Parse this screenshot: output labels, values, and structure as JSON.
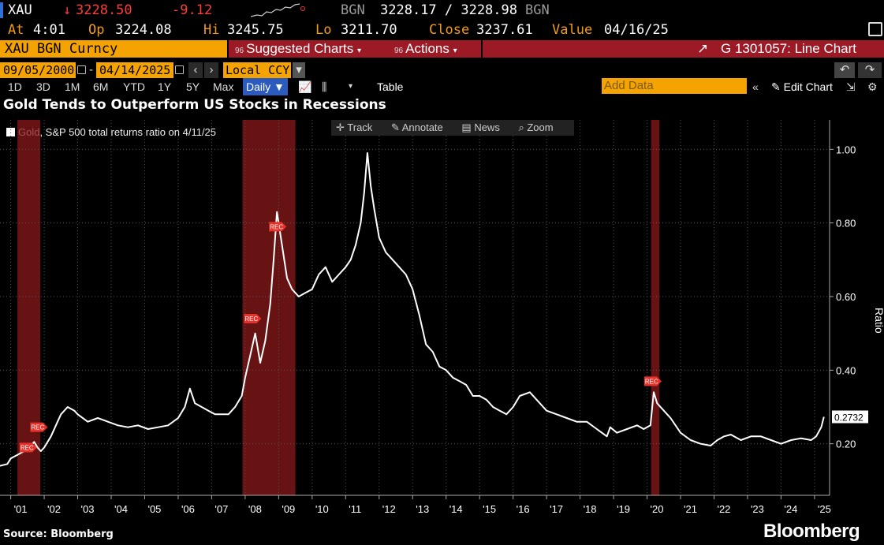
{
  "header": {
    "ticker": "XAU",
    "price_arrow": "↓",
    "price": "3228.50",
    "change": "-9.12",
    "source_label": "BGN",
    "bid_ask": "3228.17 / 3228.98",
    "source_label2": "BGN",
    "at_label": "At",
    "at_value": "4:01",
    "open_label": "Op",
    "open_value": "3224.08",
    "hi_label": "Hi",
    "hi_value": "3245.75",
    "lo_label": "Lo",
    "lo_value": "3211.70",
    "close_label": "Close",
    "close_value": "3237.61",
    "value_label": "Value",
    "value_date": "04/16/25"
  },
  "menu": {
    "security": "XAU BGN Curncy",
    "suggested_num": "96",
    "suggested": "Suggested Charts",
    "actions_num": "96",
    "actions": "Actions",
    "chart_id": "G 1301057: Line Chart"
  },
  "range": {
    "start_date": "09/05/2000",
    "end_date": "04/14/2025",
    "dash": "-",
    "currency": "Local CCY"
  },
  "periods": [
    "1D",
    "3D",
    "1M",
    "6M",
    "YTD",
    "1Y",
    "5Y",
    "Max"
  ],
  "frequency": "Daily",
  "table_label": "Table",
  "add_data_placeholder": "Add Data",
  "edit_chart": "Edit Chart",
  "toolbar": {
    "track": "Track",
    "annotate": "Annotate",
    "news": "News",
    "zoom": "Zoom"
  },
  "colors": {
    "line": "#ffffff",
    "recession": "#8b1a1a",
    "accent": "#f5a300",
    "menu": "#9b1a26"
  },
  "chart_data": {
    "type": "line",
    "title": "Gold Tends to Outperform US Stocks in Recessions",
    "series": [
      {
        "name": "Gold, S&P 500 total returns ratio on 4/11/25",
        "points": [
          [
            2000.68,
            0.14
          ],
          [
            2000.9,
            0.145
          ],
          [
            2001.0,
            0.16
          ],
          [
            2001.2,
            0.17
          ],
          [
            2001.4,
            0.18
          ],
          [
            2001.55,
            0.19
          ],
          [
            2001.7,
            0.205
          ],
          [
            2001.8,
            0.19
          ],
          [
            2001.9,
            0.18
          ],
          [
            2002.0,
            0.19
          ],
          [
            2002.2,
            0.22
          ],
          [
            2002.4,
            0.26
          ],
          [
            2002.5,
            0.28
          ],
          [
            2002.7,
            0.3
          ],
          [
            2002.9,
            0.29
          ],
          [
            2003.0,
            0.28
          ],
          [
            2003.3,
            0.26
          ],
          [
            2003.6,
            0.27
          ],
          [
            2003.9,
            0.26
          ],
          [
            2004.2,
            0.25
          ],
          [
            2004.5,
            0.245
          ],
          [
            2004.8,
            0.25
          ],
          [
            2005.1,
            0.24
          ],
          [
            2005.4,
            0.245
          ],
          [
            2005.7,
            0.25
          ],
          [
            2006.0,
            0.27
          ],
          [
            2006.2,
            0.3
          ],
          [
            2006.35,
            0.35
          ],
          [
            2006.5,
            0.31
          ],
          [
            2006.7,
            0.3
          ],
          [
            2006.9,
            0.29
          ],
          [
            2007.1,
            0.28
          ],
          [
            2007.3,
            0.28
          ],
          [
            2007.5,
            0.28
          ],
          [
            2007.7,
            0.3
          ],
          [
            2007.9,
            0.33
          ],
          [
            2008.0,
            0.38
          ],
          [
            2008.15,
            0.44
          ],
          [
            2008.3,
            0.5
          ],
          [
            2008.45,
            0.42
          ],
          [
            2008.6,
            0.48
          ],
          [
            2008.75,
            0.58
          ],
          [
            2008.85,
            0.7
          ],
          [
            2008.95,
            0.83
          ],
          [
            2009.1,
            0.74
          ],
          [
            2009.25,
            0.65
          ],
          [
            2009.4,
            0.62
          ],
          [
            2009.6,
            0.6
          ],
          [
            2009.8,
            0.61
          ],
          [
            2010.0,
            0.62
          ],
          [
            2010.2,
            0.66
          ],
          [
            2010.4,
            0.68
          ],
          [
            2010.6,
            0.64
          ],
          [
            2010.8,
            0.66
          ],
          [
            2011.0,
            0.68
          ],
          [
            2011.15,
            0.7
          ],
          [
            2011.3,
            0.74
          ],
          [
            2011.45,
            0.8
          ],
          [
            2011.55,
            0.88
          ],
          [
            2011.65,
            0.99
          ],
          [
            2011.75,
            0.9
          ],
          [
            2011.85,
            0.84
          ],
          [
            2012.0,
            0.76
          ],
          [
            2012.2,
            0.72
          ],
          [
            2012.4,
            0.7
          ],
          [
            2012.6,
            0.68
          ],
          [
            2012.8,
            0.66
          ],
          [
            2013.0,
            0.62
          ],
          [
            2013.2,
            0.55
          ],
          [
            2013.4,
            0.47
          ],
          [
            2013.6,
            0.45
          ],
          [
            2013.8,
            0.41
          ],
          [
            2014.0,
            0.4
          ],
          [
            2014.2,
            0.38
          ],
          [
            2014.4,
            0.37
          ],
          [
            2014.6,
            0.36
          ],
          [
            2014.8,
            0.33
          ],
          [
            2015.0,
            0.33
          ],
          [
            2015.2,
            0.32
          ],
          [
            2015.4,
            0.3
          ],
          [
            2015.6,
            0.29
          ],
          [
            2015.8,
            0.28
          ],
          [
            2016.0,
            0.3
          ],
          [
            2016.2,
            0.33
          ],
          [
            2016.5,
            0.34
          ],
          [
            2016.8,
            0.31
          ],
          [
            2017.0,
            0.29
          ],
          [
            2017.3,
            0.28
          ],
          [
            2017.6,
            0.27
          ],
          [
            2017.9,
            0.26
          ],
          [
            2018.2,
            0.26
          ],
          [
            2018.5,
            0.24
          ],
          [
            2018.8,
            0.22
          ],
          [
            2018.9,
            0.245
          ],
          [
            2019.1,
            0.23
          ],
          [
            2019.4,
            0.24
          ],
          [
            2019.7,
            0.25
          ],
          [
            2019.9,
            0.24
          ],
          [
            2020.1,
            0.25
          ],
          [
            2020.2,
            0.34
          ],
          [
            2020.3,
            0.31
          ],
          [
            2020.5,
            0.29
          ],
          [
            2020.7,
            0.27
          ],
          [
            2021.0,
            0.23
          ],
          [
            2021.3,
            0.21
          ],
          [
            2021.6,
            0.2
          ],
          [
            2021.9,
            0.195
          ],
          [
            2022.1,
            0.21
          ],
          [
            2022.3,
            0.22
          ],
          [
            2022.5,
            0.225
          ],
          [
            2022.8,
            0.21
          ],
          [
            2023.1,
            0.22
          ],
          [
            2023.4,
            0.22
          ],
          [
            2023.7,
            0.21
          ],
          [
            2024.0,
            0.2
          ],
          [
            2024.3,
            0.21
          ],
          [
            2024.6,
            0.215
          ],
          [
            2024.9,
            0.21
          ],
          [
            2025.05,
            0.22
          ],
          [
            2025.2,
            0.245
          ],
          [
            2025.28,
            0.2732
          ]
        ]
      }
    ],
    "last_value": "0.2732",
    "ylabel": "Ratio",
    "ylim": [
      0.06,
      1.08
    ],
    "xlim": [
      2000.68,
      2025.45
    ],
    "yticks": [
      "1.00",
      "0.80",
      "0.60",
      "0.40",
      "0.20"
    ],
    "ytick_values": [
      1.0,
      0.8,
      0.6,
      0.4,
      0.2
    ],
    "xticks": [
      "'01",
      "'02",
      "'03",
      "'04",
      "'05",
      "'06",
      "'07",
      "'08",
      "'09",
      "'10",
      "'11",
      "'12",
      "'13",
      "'14",
      "'15",
      "'16",
      "'17",
      "'18",
      "'19",
      "'20",
      "'21",
      "'22",
      "'23",
      "'24",
      "'25"
    ],
    "xtick_values": [
      2001,
      2002,
      2003,
      2004,
      2005,
      2006,
      2007,
      2008,
      2009,
      2010,
      2011,
      2012,
      2013,
      2014,
      2015,
      2016,
      2017,
      2018,
      2019,
      2020,
      2021,
      2022,
      2023,
      2024,
      2025
    ],
    "recessions": [
      [
        2001.2,
        2001.88
      ],
      [
        2007.92,
        2009.5
      ],
      [
        2020.12,
        2020.37
      ]
    ],
    "annotation_label": "REC",
    "annotations": [
      [
        2001.5,
        0.19
      ],
      [
        2001.82,
        0.245
      ],
      [
        2008.2,
        0.54
      ],
      [
        2008.95,
        0.79
      ],
      [
        2020.15,
        0.37
      ]
    ],
    "grid": true
  },
  "footer": {
    "source": "Source: Bloomberg",
    "brand": "Bloomberg"
  }
}
